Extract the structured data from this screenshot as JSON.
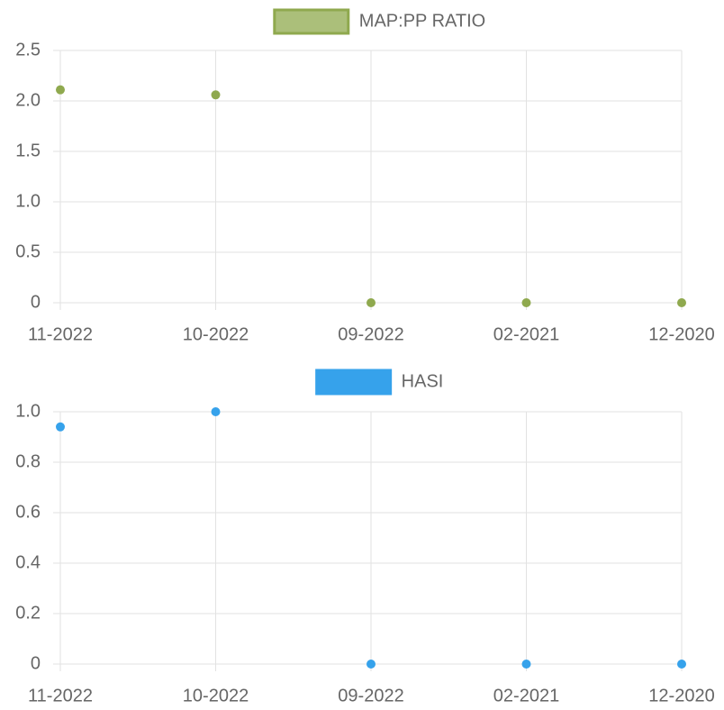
{
  "chart_data": [
    {
      "type": "line",
      "categories": [
        "11-2022",
        "10-2022",
        "09-2022",
        "02-2021",
        "12-2020"
      ],
      "series": [
        {
          "name": "MAP:PP RATIO",
          "color": "#8fa94e",
          "values": [
            2.11,
            2.06,
            0,
            0,
            0
          ]
        }
      ],
      "ylim": [
        0,
        2.5
      ],
      "yticks": [
        0,
        0.5,
        {
          "value": 1,
          "label": "1.0"
        },
        1.5,
        {
          "value": 2,
          "label": "2.0"
        },
        2.5
      ],
      "grid": true,
      "legend": "top"
    },
    {
      "type": "line",
      "categories": [
        "11-2022",
        "10-2022",
        "09-2022",
        "02-2021",
        "12-2020"
      ],
      "series": [
        {
          "name": "HASI",
          "color": "#36a2eb",
          "values": [
            0.94,
            1.0,
            0,
            0,
            0
          ]
        }
      ],
      "ylim": [
        0,
        1
      ],
      "yticks": [
        0,
        0.2,
        0.4,
        0.6,
        0.8,
        {
          "value": 1,
          "label": "1.0"
        }
      ],
      "grid": true,
      "legend": "top"
    }
  ]
}
